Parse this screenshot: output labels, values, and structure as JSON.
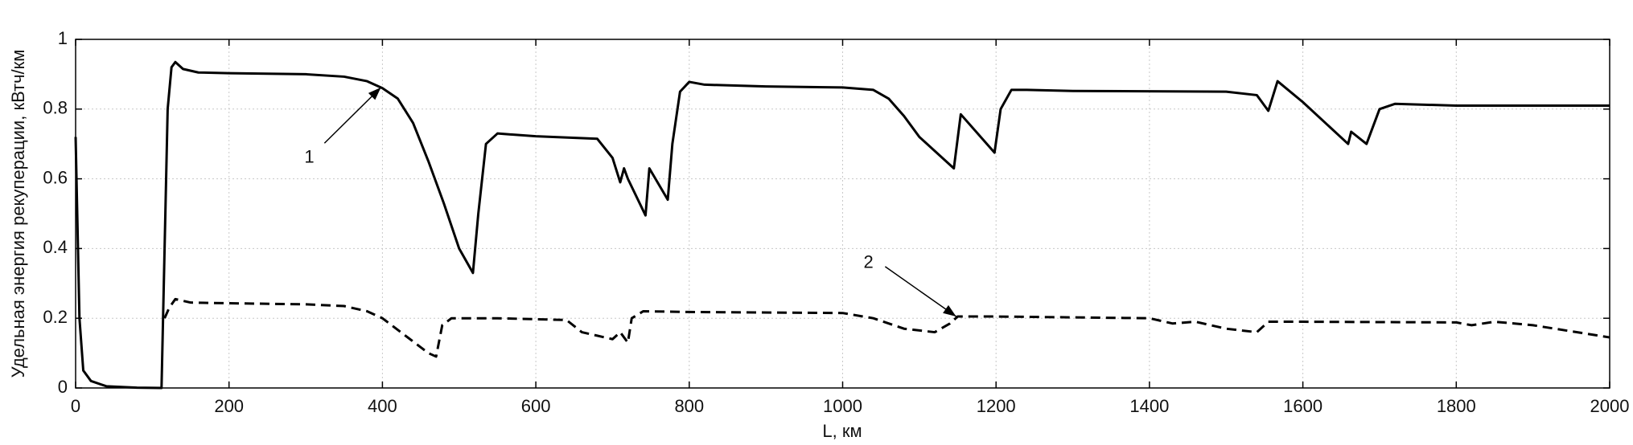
{
  "chart_data": {
    "type": "line",
    "xlabel": "L, км",
    "ylabel": "Удельная энергия рекуперации, кВтч/км",
    "xlim": [
      0,
      2000
    ],
    "xticks": [
      0,
      200,
      400,
      600,
      800,
      1000,
      1200,
      1400,
      1600,
      1800,
      2000
    ],
    "ylim": [
      0,
      1
    ],
    "yticks": [
      0,
      0.2,
      0.4,
      0.6,
      0.8,
      1
    ],
    "grid": true,
    "series": [
      {
        "name": "1",
        "color": "#000000",
        "dashed": false,
        "x": [
          0,
          5,
          10,
          20,
          40,
          80,
          112,
          115,
          120,
          125,
          130,
          140,
          160,
          200,
          300,
          350,
          380,
          400,
          420,
          440,
          460,
          480,
          500,
          518,
          525,
          535,
          550,
          600,
          680,
          700,
          710,
          715,
          720,
          743,
          748,
          772,
          778,
          788,
          800,
          820,
          900,
          1000,
          1040,
          1060,
          1080,
          1100,
          1145,
          1154,
          1198,
          1206,
          1220,
          1240,
          1300,
          1500,
          1540,
          1555,
          1567,
          1600,
          1659,
          1663,
          1683,
          1700,
          1720,
          1800,
          2000
        ],
        "values": [
          0.72,
          0.2,
          0.05,
          0.02,
          0.005,
          0.001,
          0,
          0.3,
          0.8,
          0.92,
          0.935,
          0.915,
          0.905,
          0.903,
          0.9,
          0.893,
          0.88,
          0.86,
          0.83,
          0.76,
          0.65,
          0.53,
          0.4,
          0.33,
          0.5,
          0.7,
          0.73,
          0.722,
          0.715,
          0.66,
          0.59,
          0.63,
          0.6,
          0.495,
          0.63,
          0.54,
          0.7,
          0.85,
          0.878,
          0.87,
          0.865,
          0.862,
          0.855,
          0.83,
          0.78,
          0.72,
          0.63,
          0.785,
          0.675,
          0.8,
          0.855,
          0.855,
          0.852,
          0.85,
          0.84,
          0.795,
          0.88,
          0.82,
          0.7,
          0.735,
          0.7,
          0.8,
          0.815,
          0.81,
          0.81
        ]
      },
      {
        "name": "2",
        "color": "#000000",
        "dashed": true,
        "x": [
          116,
          122,
          130,
          150,
          200,
          300,
          350,
          380,
          400,
          430,
          460,
          470,
          478,
          490,
          550,
          640,
          660,
          680,
          700,
          710,
          720,
          725,
          740,
          800,
          1000,
          1040,
          1080,
          1120,
          1140,
          1150,
          1200,
          1400,
          1430,
          1460,
          1500,
          1540,
          1555,
          1600,
          1800,
          1820,
          1850,
          1900,
          2000
        ],
        "values": [
          0.2,
          0.23,
          0.255,
          0.245,
          0.243,
          0.24,
          0.235,
          0.22,
          0.2,
          0.15,
          0.1,
          0.09,
          0.18,
          0.2,
          0.2,
          0.195,
          0.16,
          0.15,
          0.14,
          0.16,
          0.13,
          0.2,
          0.22,
          0.218,
          0.215,
          0.2,
          0.17,
          0.16,
          0.185,
          0.205,
          0.205,
          0.2,
          0.185,
          0.19,
          0.17,
          0.16,
          0.19,
          0.19,
          0.188,
          0.18,
          0.19,
          0.18,
          0.145
        ]
      }
    ]
  }
}
